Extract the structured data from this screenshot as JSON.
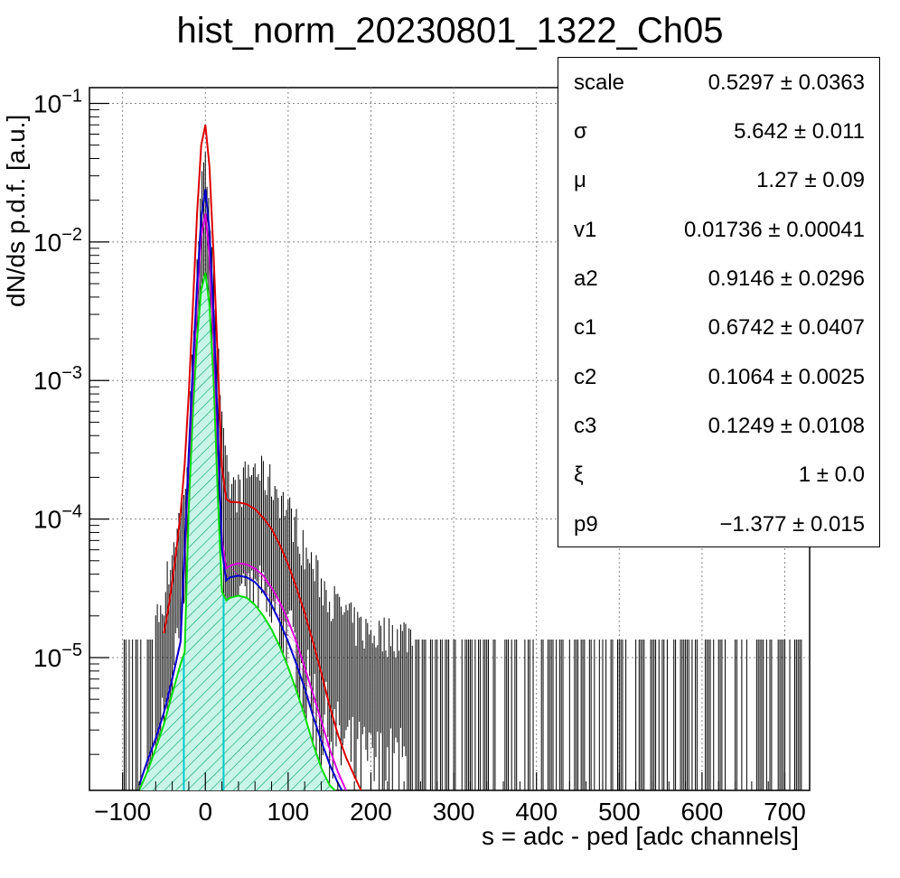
{
  "title": "hist_norm_20230801_1322_Ch05",
  "stats": [
    {
      "name": "scale",
      "value": "0.5297 ± 0.0363"
    },
    {
      "name": "σ",
      "value": "5.642 ± 0.011"
    },
    {
      "name": "μ",
      "value": "1.27 ± 0.09"
    },
    {
      "name": "v1",
      "value": "0.01736 ± 0.00041"
    },
    {
      "name": "a2",
      "value": "0.9146 ± 0.0296"
    },
    {
      "name": "c1",
      "value": "0.6742 ± 0.0407"
    },
    {
      "name": "c2",
      "value": "0.1064 ± 0.0025"
    },
    {
      "name": "c3",
      "value": "0.1249 ± 0.0108"
    },
    {
      "name": "ξ",
      "value": "1 ± 0.0"
    },
    {
      "name": "p9",
      "value": "−1.377 ± 0.015"
    }
  ],
  "chart_data": {
    "type": "line",
    "title": "hist_norm_20230801_1322_Ch05",
    "xlabel": "s = adc - ped [adc channels]",
    "ylabel": "dN/ds p.d.f. [a.u.]",
    "xlim": [
      -140,
      730
    ],
    "ylim": [
      1.1e-06,
      0.13
    ],
    "yscale": "log",
    "grid": true,
    "x_ticks": [
      -100,
      0,
      100,
      200,
      300,
      400,
      500,
      600,
      700
    ],
    "x_tick_labels": [
      "−100",
      "0",
      "100",
      "200",
      "300",
      "400",
      "500",
      "600",
      "700"
    ],
    "y_ticks": [
      {
        "value": 1e-05,
        "base": "10",
        "exp": "−5"
      },
      {
        "value": 0.0001,
        "base": "10",
        "exp": "−4"
      },
      {
        "value": 0.001,
        "base": "10",
        "exp": "−3"
      },
      {
        "value": 0.01,
        "base": "10",
        "exp": "−2"
      },
      {
        "value": 0.1,
        "base": "10",
        "exp": "−1"
      }
    ],
    "data_histogram": {
      "color": "#000000",
      "x": [
        -100,
        -80,
        -60,
        -50,
        -40,
        -30,
        -25,
        -20,
        -15,
        -10,
        -5,
        0,
        5,
        10,
        15,
        20,
        25,
        30,
        40,
        50,
        60,
        70,
        80,
        90,
        100,
        110,
        120,
        130,
        140,
        150,
        160,
        170,
        180,
        190,
        200,
        220,
        250
      ],
      "y": [
        1.3e-05,
        1.3e-05,
        1.5e-05,
        2.5e-05,
        5e-05,
        0.0001,
        0.00015,
        0.0003,
        0.0015,
        0.008,
        0.02,
        0.03,
        0.02,
        0.006,
        0.0015,
        0.0004,
        0.0002,
        0.00015,
        0.00014,
        0.00018,
        0.0002,
        0.00018,
        0.00016,
        0.00013,
        0.0001,
        8e-05,
        5e-05,
        4e-05,
        3e-05,
        2.5e-05,
        2e-05,
        1.8e-05,
        1.5e-05,
        1.4e-05,
        1.3e-05,
        1.3e-05,
        1.3e-05
      ]
    },
    "series": [
      {
        "color": "#dd0000",
        "x": [
          -50,
          -45,
          -40,
          -35,
          -30,
          -25,
          -20,
          -15,
          -10,
          -5,
          0,
          5,
          10,
          15,
          20,
          25,
          30,
          40,
          50,
          60,
          70,
          80,
          90,
          100,
          110,
          120,
          130,
          140,
          150,
          160,
          170,
          180,
          188
        ],
        "y": [
          1.5e-05,
          2.2e-05,
          3.5e-05,
          6e-05,
          0.00011,
          0.00025,
          0.0008,
          0.0035,
          0.016,
          0.05,
          0.07,
          0.035,
          0.008,
          0.0014,
          0.00024,
          0.00014,
          0.000133,
          0.000132,
          0.000128,
          0.000118,
          0.000102,
          8.5e-05,
          6.5e-05,
          4.7e-05,
          3.2e-05,
          2.1e-05,
          1.3e-05,
          7.8e-06,
          4.5e-06,
          2.8e-06,
          1.9e-06,
          1.4e-06,
          1.1e-06
        ]
      },
      {
        "color": "#0000cc",
        "x": [
          -80,
          -70,
          -60,
          -50,
          -40,
          -30,
          -20,
          -15,
          -10,
          -5,
          0,
          5,
          10,
          15,
          20,
          25,
          30,
          40,
          50,
          60,
          70,
          80,
          90,
          100,
          110,
          120,
          130,
          140,
          150,
          160,
          165
        ],
        "y": [
          1.2e-06,
          1.8e-06,
          2.6e-06,
          4e-06,
          7e-06,
          1.3e-05,
          0.0003,
          0.0013,
          0.005,
          0.015,
          0.024,
          0.012,
          0.003,
          0.00045,
          6e-05,
          3.6e-05,
          3.8e-05,
          3.9e-05,
          3.8e-05,
          3.5e-05,
          3e-05,
          2.4e-05,
          1.8e-05,
          1.3e-05,
          9e-06,
          6e-06,
          3.8e-06,
          2.5e-06,
          1.7e-06,
          1.25e-06,
          1.1e-06
        ]
      },
      {
        "color": "#dd00dd",
        "x": [
          -80,
          -70,
          -60,
          -50,
          -40,
          -30,
          -20,
          -15,
          -10,
          -5,
          0,
          5,
          10,
          15,
          20,
          25,
          30,
          40,
          50,
          60,
          70,
          80,
          90,
          100,
          110,
          120,
          130,
          140,
          150,
          160,
          170
        ],
        "y": [
          1.2e-06,
          1.8e-06,
          2.6e-06,
          4e-06,
          7e-06,
          1.3e-05,
          0.00025,
          0.001,
          0.004,
          0.011,
          0.016,
          0.008,
          0.002,
          0.00035,
          7e-05,
          4.4e-05,
          4.6e-05,
          4.8e-05,
          4.7e-05,
          4.4e-05,
          3.9e-05,
          3.2e-05,
          2.5e-05,
          1.85e-05,
          1.3e-05,
          8.5e-06,
          5.5e-06,
          3.5e-06,
          2.2e-06,
          1.5e-06,
          1.1e-06
        ]
      },
      {
        "color": "#00dd00",
        "x": [
          -80,
          -70,
          -60,
          -50,
          -40,
          -30,
          -25,
          -20,
          -15,
          -10,
          -5,
          0,
          5,
          10,
          15,
          20,
          25,
          30,
          40,
          50,
          60,
          70,
          80,
          90,
          100,
          110,
          120,
          130,
          140,
          150,
          160,
          165
        ],
        "y": [
          1.1e-06,
          1.5e-06,
          2.2e-06,
          3.3e-06,
          5.5e-06,
          9e-06,
          1.1e-05,
          0.00012,
          0.0006,
          0.002,
          0.0045,
          0.006,
          0.0035,
          0.001,
          0.00015,
          3e-05,
          2.6e-05,
          2.7e-05,
          2.8e-05,
          2.7e-05,
          2.4e-05,
          2e-05,
          1.6e-05,
          1.2e-05,
          8.5e-06,
          5.8e-06,
          3.8e-06,
          2.4e-06,
          1.6e-06,
          1.2e-06,
          1.05e-06,
          1e-06
        ]
      }
    ],
    "markers": [
      {
        "color": "#00cccc",
        "x": -26
      },
      {
        "color": "#00cccc",
        "x": 22
      }
    ]
  }
}
